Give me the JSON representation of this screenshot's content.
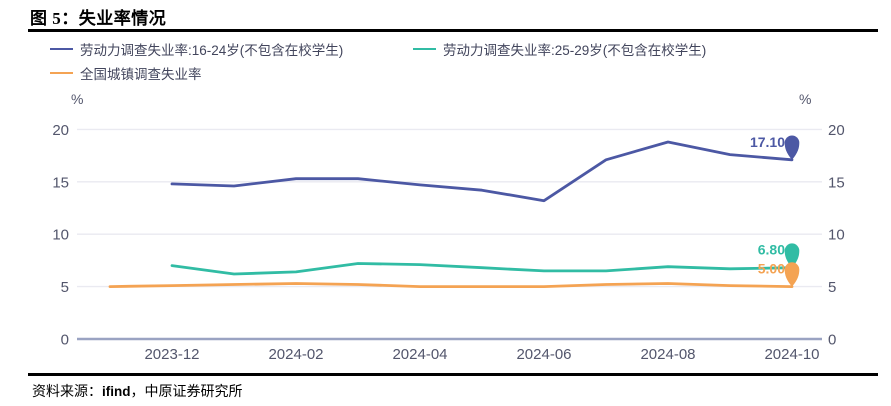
{
  "figure": {
    "title": "图 5：失业率情况",
    "source_prefix": "资料来源：",
    "source_highlight": "ifind",
    "source_suffix": "，中原证券研究所"
  },
  "axis": {
    "unit_left": "%",
    "unit_right": "%"
  },
  "legend": [
    {
      "label": "劳动力调查失业率:16-24岁(不包含在校学生)",
      "color": "#4C58A4"
    },
    {
      "label": "劳动力调查失业率:25-29岁(不包含在校学生)",
      "color": "#31BCA4"
    },
    {
      "label": "全国城镇调查失业率",
      "color": "#F4A353"
    }
  ],
  "chart_data": {
    "type": "line",
    "title": "失业率情况",
    "x": [
      "2023-11",
      "2023-12",
      "2024-01",
      "2024-02",
      "2024-03",
      "2024-04",
      "2024-05",
      "2024-06",
      "2024-07",
      "2024-08",
      "2024-09",
      "2024-10"
    ],
    "x_tick_labels": [
      "2023-12",
      "2024-02",
      "2024-04",
      "2024-06",
      "2024-08",
      "2024-10"
    ],
    "y_ticks": [
      0,
      5,
      10,
      15,
      20
    ],
    "ylim": [
      0,
      21.5
    ],
    "ylabel": "%",
    "grid": true,
    "legend_position": "top-left",
    "series": [
      {
        "name": "劳动力调查失业率:16-24岁(不包含在校学生)",
        "color": "#4C58A4",
        "start": "2023-12",
        "values": [
          14.8,
          14.6,
          15.3,
          15.3,
          14.7,
          14.2,
          13.2,
          17.1,
          18.8,
          17.6,
          17.1
        ],
        "end_label": "17.10"
      },
      {
        "name": "劳动力调查失业率:25-29岁(不包含在校学生)",
        "color": "#31BCA4",
        "start": "2023-12",
        "values": [
          7.0,
          6.2,
          6.4,
          7.2,
          7.1,
          6.8,
          6.5,
          6.5,
          6.9,
          6.7,
          6.8
        ],
        "end_label": "6.80"
      },
      {
        "name": "全国城镇调查失业率",
        "color": "#F4A353",
        "start": "2023-11",
        "values": [
          5.0,
          5.1,
          5.2,
          5.3,
          5.2,
          5.0,
          5.0,
          5.0,
          5.2,
          5.3,
          5.1,
          5.0
        ],
        "end_label": "5.00"
      }
    ]
  }
}
